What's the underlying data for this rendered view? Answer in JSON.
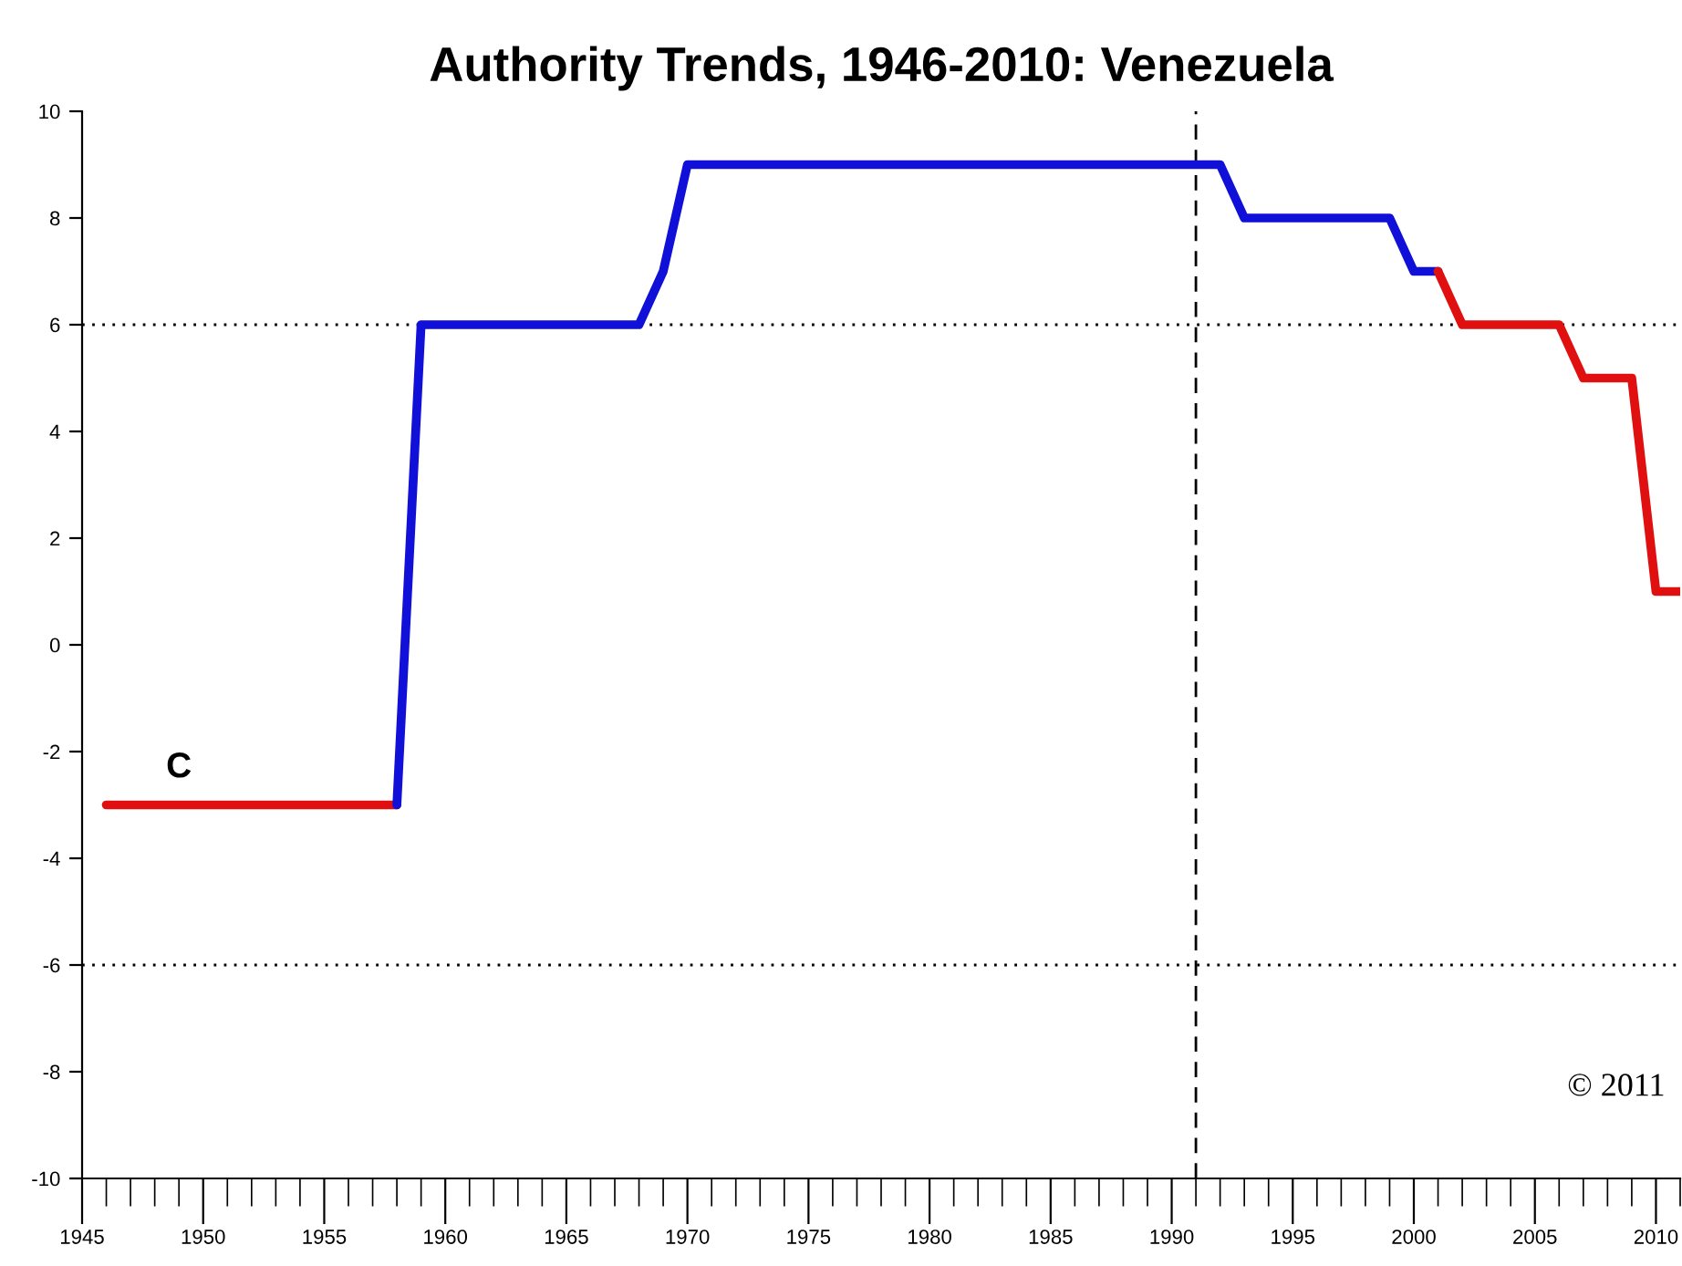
{
  "chart_data": {
    "type": "line",
    "title": "Authority Trends, 1946-2010: Venezuela",
    "series": [
      {
        "color": "#e01010",
        "x": [
          1946,
          1958
        ],
        "values": [
          -3,
          -3
        ]
      },
      {
        "color": "#1010d8",
        "x": [
          1958,
          1959,
          1968,
          1969,
          1970,
          1992,
          1993,
          1999,
          2000,
          2001
        ],
        "values": [
          -3,
          6,
          6,
          7,
          9,
          9,
          8,
          8,
          7,
          7
        ]
      },
      {
        "color": "#e01010",
        "x": [
          2001,
          2002,
          2006,
          2007,
          2009,
          2010,
          2011
        ],
        "values": [
          7,
          6,
          6,
          5,
          5,
          1,
          1
        ]
      }
    ],
    "xlim": [
      1945,
      2011
    ],
    "xticks": [
      1945,
      1950,
      1955,
      1960,
      1965,
      1970,
      1975,
      1980,
      1985,
      1990,
      1995,
      2000,
      2005,
      2010
    ],
    "ylim": [
      -10,
      10
    ],
    "yticks": [
      -10,
      -8,
      -6,
      -4,
      -2,
      0,
      2,
      4,
      6,
      8,
      10
    ],
    "ref_lines": [
      {
        "axis": "y",
        "value": 6,
        "line_style": "dotted",
        "color": "#000000"
      },
      {
        "axis": "y",
        "value": -6,
        "line_style": "dotted",
        "color": "#000000"
      },
      {
        "axis": "x",
        "value": 1991,
        "line_style": "dashed",
        "color": "#000000"
      }
    ],
    "annotations": [
      {
        "text": "C",
        "x": 1949,
        "y": -3
      },
      "© 2011"
    ],
    "grid": false,
    "legend": false
  }
}
